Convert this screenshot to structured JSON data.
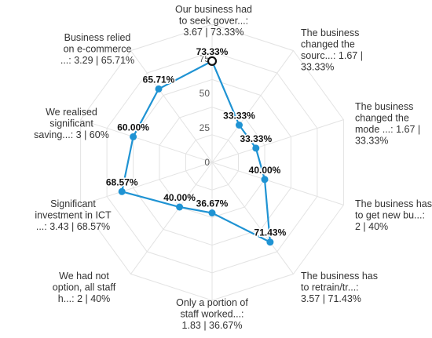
{
  "chart_data": {
    "type": "radar",
    "title": "",
    "rlim": [
      0,
      100
    ],
    "ticks": [
      "0",
      "25",
      "50",
      "75"
    ],
    "tick_values": [
      0,
      25,
      50,
      75
    ],
    "grid": true,
    "categories": [
      [
        "Our business had",
        "to seek gover...:",
        "3.67 | 73.33%"
      ],
      [
        "The business",
        "changed the",
        "sourc...: 1.67 |",
        "33.33%"
      ],
      [
        "The business",
        "changed the",
        "mode ...: 1.67 |",
        "33.33%"
      ],
      [
        "The business has",
        "to get new bu...:",
        "2 | 40%"
      ],
      [
        "The business has",
        "to retrain/tr...:",
        "3.57 | 71.43%"
      ],
      [
        "Only a portion of",
        "staff worked...:",
        "1.83 | 36.67%"
      ],
      [
        "We had not",
        "option, all staff",
        "h...: 2 | 40%"
      ],
      [
        "Significant",
        "investment in ICT",
        "...: 3.43 | 68.57%"
      ],
      [
        "We realised",
        "significant",
        "saving...: 3 | 60%"
      ],
      [
        "Business relied",
        "on e-commerce",
        "...: 3.29 | 65.71%"
      ]
    ],
    "values": [
      73.33,
      33.33,
      33.33,
      40.0,
      71.43,
      36.67,
      40.0,
      68.57,
      60.0,
      65.71
    ],
    "data_labels": [
      "73.33%",
      "33.33%",
      "33.33%",
      "40.00%",
      "71.43%",
      "36.67%",
      "40.00%",
      "68.57%",
      "60.00%",
      "65.71%"
    ],
    "colors": {
      "series": "#1f93d3",
      "grid": "#e3e3e3",
      "highlight_marker_stroke": "#111111"
    }
  }
}
